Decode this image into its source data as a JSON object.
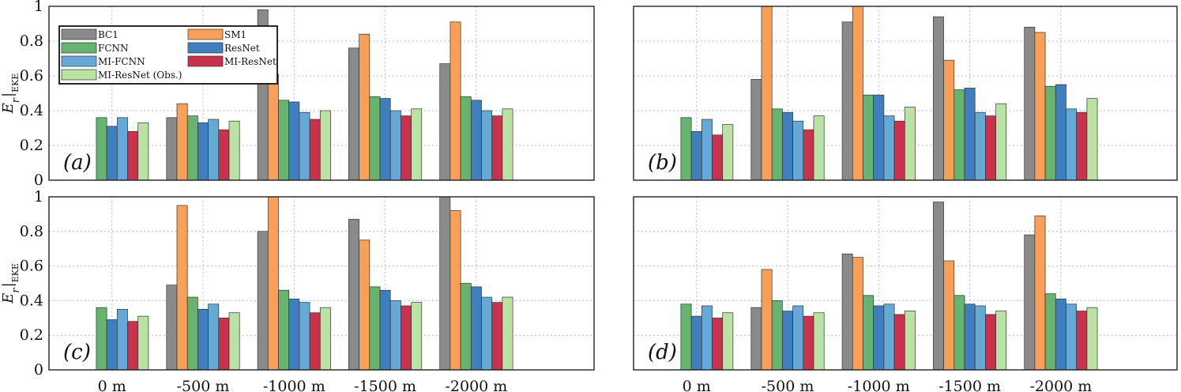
{
  "chart_data": [
    {
      "type": "bar",
      "panel_label": "(a)",
      "ylabel": "E_r|EKE",
      "ylim": [
        0,
        1
      ],
      "yticks": [
        "0",
        "0.2",
        "0.4",
        "0.6",
        "0.8",
        "1"
      ],
      "categories": [
        "0 m",
        "-500 m",
        "-1000 m",
        "-1500 m",
        "-2000 m"
      ],
      "show_xticklabels": false,
      "legend": "top-left",
      "series": [
        {
          "name": "BC1",
          "color": "#8a8a8a",
          "values": [
            null,
            0.36,
            0.98,
            0.76,
            0.67
          ]
        },
        {
          "name": "SM1",
          "color": "#f8a05a",
          "values": [
            null,
            0.44,
            0.61,
            0.84,
            0.91
          ]
        },
        {
          "name": "FCNN",
          "color": "#66b46f",
          "values": [
            0.36,
            0.37,
            0.46,
            0.48,
            0.48
          ]
        },
        {
          "name": "ResNet",
          "color": "#3f7fbd",
          "values": [
            0.31,
            0.33,
            0.45,
            0.47,
            0.46
          ]
        },
        {
          "name": "MI-FCNN",
          "color": "#66a9d6",
          "values": [
            0.36,
            0.35,
            0.39,
            0.4,
            0.4
          ]
        },
        {
          "name": "MI-ResNet",
          "color": "#c8324d",
          "values": [
            0.28,
            0.29,
            0.35,
            0.37,
            0.37
          ]
        },
        {
          "name": "MI-ResNet (Obs.)",
          "color": "#b9e2a4",
          "values": [
            0.33,
            0.34,
            0.4,
            0.41,
            0.41
          ]
        }
      ]
    },
    {
      "type": "bar",
      "panel_label": "(b)",
      "ylabel": "",
      "ylim": [
        0,
        1
      ],
      "yticks": [
        "0",
        "0.2",
        "0.4",
        "0.6",
        "0.8",
        "1"
      ],
      "categories": [
        "0 m",
        "-500 m",
        "-1000 m",
        "-1500 m",
        "-2000 m"
      ],
      "show_xticklabels": false,
      "series": [
        {
          "name": "BC1",
          "color": "#8a8a8a",
          "values": [
            null,
            0.58,
            0.91,
            0.94,
            0.88
          ]
        },
        {
          "name": "SM1",
          "color": "#f8a05a",
          "values": [
            null,
            1.0,
            1.0,
            0.69,
            0.85
          ]
        },
        {
          "name": "FCNN",
          "color": "#66b46f",
          "values": [
            0.36,
            0.41,
            0.49,
            0.52,
            0.54
          ]
        },
        {
          "name": "ResNet",
          "color": "#3f7fbd",
          "values": [
            0.28,
            0.39,
            0.49,
            0.53,
            0.55
          ]
        },
        {
          "name": "MI-FCNN",
          "color": "#66a9d6",
          "values": [
            0.35,
            0.34,
            0.37,
            0.39,
            0.41
          ]
        },
        {
          "name": "MI-ResNet",
          "color": "#c8324d",
          "values": [
            0.26,
            0.29,
            0.34,
            0.37,
            0.39
          ]
        },
        {
          "name": "MI-ResNet (Obs.)",
          "color": "#b9e2a4",
          "values": [
            0.32,
            0.37,
            0.42,
            0.44,
            0.47
          ]
        }
      ]
    },
    {
      "type": "bar",
      "panel_label": "(c)",
      "ylabel": "E_r|EKE",
      "ylim": [
        0,
        1
      ],
      "yticks": [
        "0",
        "0.2",
        "0.4",
        "0.6",
        "0.8",
        "1"
      ],
      "categories": [
        "0 m",
        "-500 m",
        "-1000 m",
        "-1500 m",
        "-2000 m"
      ],
      "show_xticklabels": true,
      "series": [
        {
          "name": "BC1",
          "color": "#8a8a8a",
          "values": [
            null,
            0.49,
            0.8,
            0.87,
            1.0
          ]
        },
        {
          "name": "SM1",
          "color": "#f8a05a",
          "values": [
            null,
            0.95,
            1.0,
            0.75,
            0.92
          ]
        },
        {
          "name": "FCNN",
          "color": "#66b46f",
          "values": [
            0.36,
            0.42,
            0.46,
            0.48,
            0.5
          ]
        },
        {
          "name": "ResNet",
          "color": "#3f7fbd",
          "values": [
            0.29,
            0.35,
            0.41,
            0.46,
            0.48
          ]
        },
        {
          "name": "MI-FCNN",
          "color": "#66a9d6",
          "values": [
            0.35,
            0.38,
            0.39,
            0.4,
            0.42
          ]
        },
        {
          "name": "MI-ResNet",
          "color": "#c8324d",
          "values": [
            0.28,
            0.3,
            0.33,
            0.37,
            0.39
          ]
        },
        {
          "name": "MI-ResNet (Obs.)",
          "color": "#b9e2a4",
          "values": [
            0.31,
            0.33,
            0.36,
            0.39,
            0.42
          ]
        }
      ]
    },
    {
      "type": "bar",
      "panel_label": "(d)",
      "ylabel": "",
      "ylim": [
        0,
        1
      ],
      "yticks": [
        "0",
        "0.2",
        "0.4",
        "0.6",
        "0.8",
        "1"
      ],
      "categories": [
        "0 m",
        "-500 m",
        "-1000 m",
        "-1500 m",
        "-2000 m"
      ],
      "show_xticklabels": true,
      "series": [
        {
          "name": "BC1",
          "color": "#8a8a8a",
          "values": [
            null,
            0.36,
            0.67,
            0.97,
            0.78
          ]
        },
        {
          "name": "SM1",
          "color": "#f8a05a",
          "values": [
            null,
            0.58,
            0.65,
            0.63,
            0.89
          ]
        },
        {
          "name": "FCNN",
          "color": "#66b46f",
          "values": [
            0.38,
            0.4,
            0.43,
            0.43,
            0.44
          ]
        },
        {
          "name": "ResNet",
          "color": "#3f7fbd",
          "values": [
            0.31,
            0.34,
            0.37,
            0.38,
            0.41
          ]
        },
        {
          "name": "MI-FCNN",
          "color": "#66a9d6",
          "values": [
            0.37,
            0.37,
            0.38,
            0.37,
            0.38
          ]
        },
        {
          "name": "MI-ResNet",
          "color": "#c8324d",
          "values": [
            0.3,
            0.31,
            0.32,
            0.32,
            0.34
          ]
        },
        {
          "name": "MI-ResNet (Obs.)",
          "color": "#b9e2a4",
          "values": [
            0.33,
            0.33,
            0.34,
            0.34,
            0.36
          ]
        }
      ]
    }
  ]
}
